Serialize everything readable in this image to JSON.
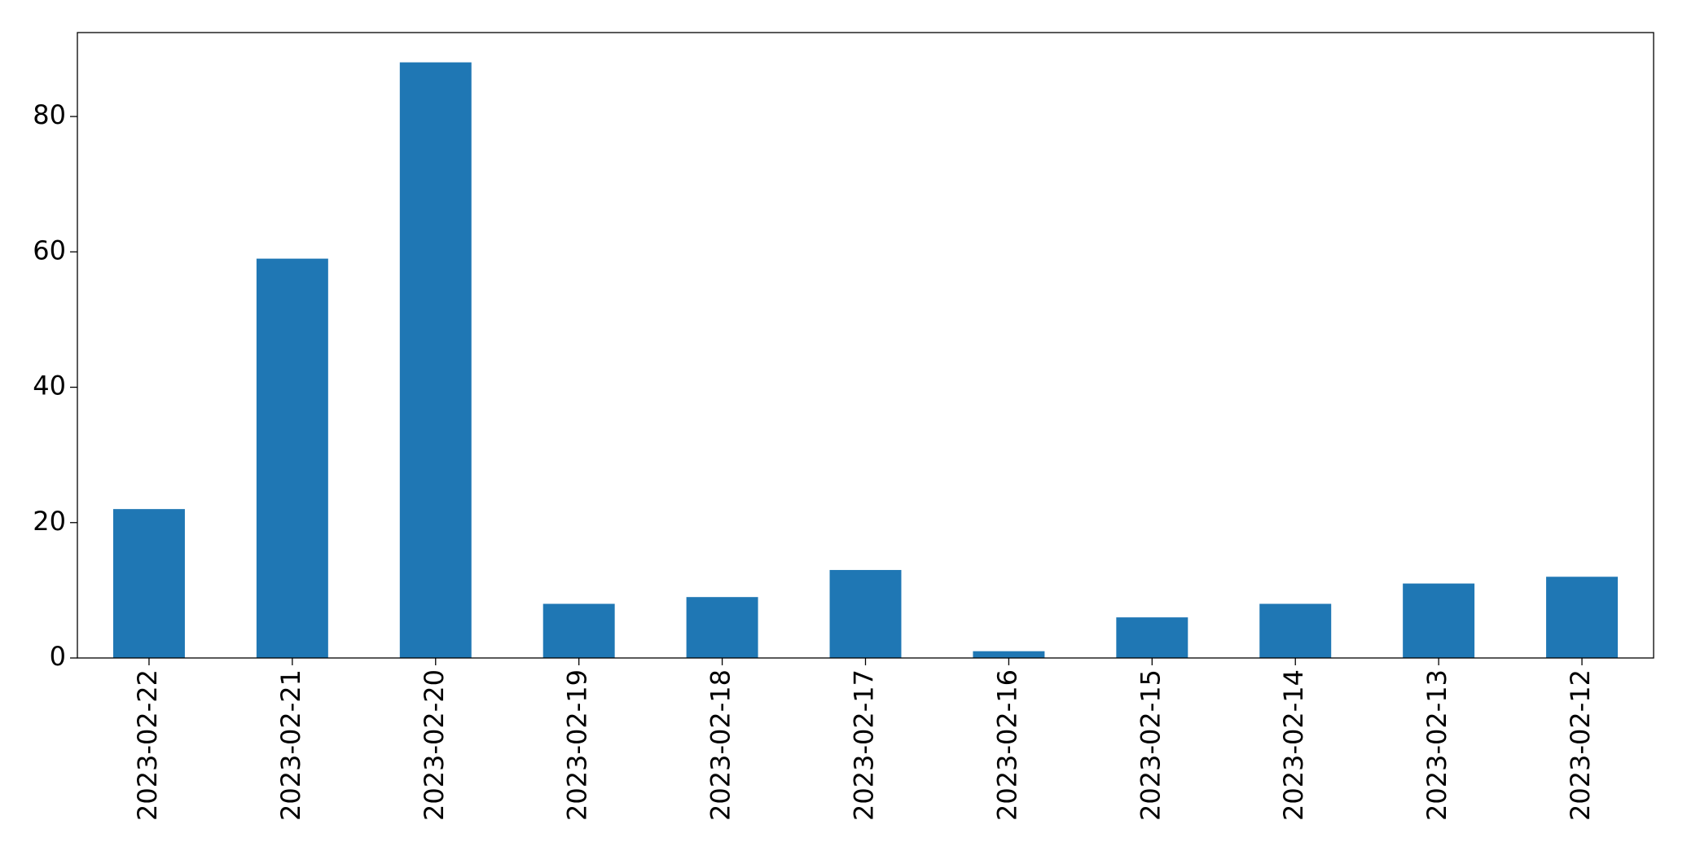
{
  "chart_data": {
    "type": "bar",
    "categories": [
      "2023-02-22",
      "2023-02-21",
      "2023-02-20",
      "2023-02-19",
      "2023-02-18",
      "2023-02-17",
      "2023-02-16",
      "2023-02-15",
      "2023-02-14",
      "2023-02-13",
      "2023-02-12"
    ],
    "values": [
      22,
      59,
      88,
      8,
      9,
      13,
      1,
      6,
      8,
      11,
      12
    ],
    "color": "#1f77b4",
    "ylim": [
      0,
      92.4
    ],
    "yticks": [
      0,
      20,
      40,
      60,
      80
    ],
    "grid": false
  }
}
